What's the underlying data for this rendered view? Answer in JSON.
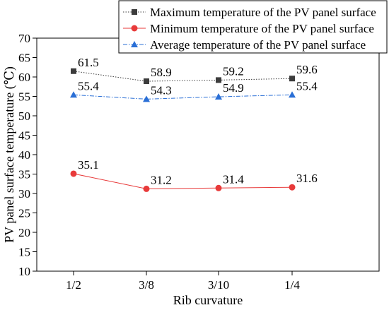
{
  "chart_data": {
    "type": "line",
    "title": "",
    "xlabel": "Rib curvature",
    "ylabel": "PV panel surface temperature (℃)",
    "categories": [
      "1/2",
      "3/8",
      "3/10",
      "1/4"
    ],
    "ylim": [
      10,
      70
    ],
    "yticks": [
      10,
      15,
      20,
      25,
      30,
      35,
      40,
      45,
      50,
      55,
      60,
      65,
      70
    ],
    "grid": false,
    "legend_position": "top-right",
    "series": [
      {
        "name": "Maximum temperature of the PV panel surface",
        "values": [
          61.5,
          58.9,
          59.2,
          59.6
        ],
        "labels": [
          "61.5",
          "58.9",
          "59.2",
          "59.6"
        ],
        "color": "#3c3c3c",
        "marker": "square",
        "line_style": "dotted"
      },
      {
        "name": "Minimum temperature of the PV panel surface",
        "values": [
          35.1,
          31.2,
          31.4,
          31.6
        ],
        "labels": [
          "35.1",
          "31.2",
          "31.4",
          "31.6"
        ],
        "color": "#e83a3a",
        "marker": "circle",
        "line_style": "solid"
      },
      {
        "name": "Average temperature of the PV panel surface",
        "values": [
          55.4,
          54.3,
          54.9,
          55.4
        ],
        "labels": [
          "55.4",
          "54.3",
          "54.9",
          "55.4"
        ],
        "color": "#2a6fd6",
        "marker": "triangle",
        "line_style": "dashdot"
      }
    ]
  }
}
